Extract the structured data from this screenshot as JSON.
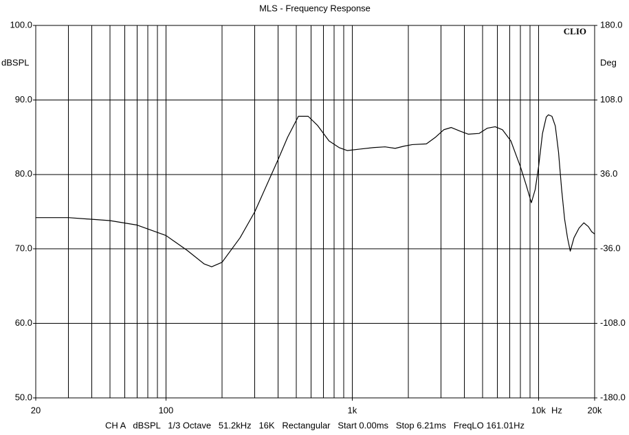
{
  "chart_data": {
    "type": "line",
    "title": "MLS - Frequency Response",
    "brand": "CLIO",
    "ylabel": "dBSPL",
    "y2label": "Deg",
    "xlabel": "Hz",
    "footer": "CH A   dBSPL   1/3 Octave   51.2kHz   16K   Rectangular   Start 0.00ms   Stop 6.21ms   FreqLO 161.01Hz",
    "xscale": "log",
    "grid": true,
    "xlim": [
      20,
      20000
    ],
    "xticks": [
      20,
      100,
      {
        "value": 1000,
        "label": "1k"
      },
      {
        "value": 10000,
        "label": "10k"
      },
      {
        "value": 20000,
        "label": "20k"
      }
    ],
    "xgrid": [
      30,
      40,
      50,
      60,
      70,
      80,
      90,
      200,
      300,
      400,
      500,
      600,
      700,
      800,
      900,
      2000,
      3000,
      4000,
      5000,
      6000,
      7000,
      8000,
      9000
    ],
    "ylim": [
      50,
      100
    ],
    "yticks": [
      {
        "value": 50,
        "label": "50.0"
      },
      {
        "value": 60,
        "label": "60.0"
      },
      {
        "value": 70,
        "label": "70.0"
      },
      {
        "value": 80,
        "label": "80.0"
      },
      {
        "value": 90,
        "label": "90.0"
      },
      {
        "value": 100,
        "label": "100.0"
      }
    ],
    "y2lim": [
      -180,
      180
    ],
    "y2ticks": [
      {
        "value": -180,
        "label": "-180.0"
      },
      {
        "value": -108,
        "label": "-108.0"
      },
      {
        "value": -36,
        "label": "-36.0"
      },
      {
        "value": 36,
        "label": "36.0"
      },
      {
        "value": 108,
        "label": "108.0"
      },
      {
        "value": 180,
        "label": "180.0"
      }
    ],
    "x": [
      20,
      30,
      50,
      70,
      100,
      130,
      160,
      176,
      200,
      250,
      300,
      400,
      450,
      514,
      580,
      650,
      750,
      850,
      940,
      1100,
      1300,
      1500,
      1700,
      1900,
      2100,
      2500,
      2800,
      3100,
      3400,
      3800,
      4200,
      4800,
      5300,
      5850,
      6400,
      7100,
      7600,
      8000,
      8600,
      9150,
      9600,
      10000,
      10500,
      11000,
      11300,
      11800,
      12300,
      12800,
      13300,
      13800,
      14300,
      14800,
      15500,
      16500,
      17500,
      18500,
      19300,
      20000
    ],
    "series": [
      {
        "name": "CH A",
        "color": "#000000",
        "values": [
          74.2,
          74.2,
          73.8,
          73.2,
          71.8,
          69.8,
          68.0,
          67.6,
          68.2,
          71.5,
          75.0,
          82.0,
          85.0,
          87.8,
          87.8,
          86.6,
          84.5,
          83.6,
          83.2,
          83.4,
          83.6,
          83.7,
          83.5,
          83.8,
          84.0,
          84.1,
          85.0,
          86.0,
          86.3,
          85.8,
          85.4,
          85.5,
          86.2,
          86.4,
          86.0,
          84.5,
          82.5,
          81.0,
          78.5,
          76.2,
          78.0,
          81.0,
          85.5,
          87.7,
          88.0,
          87.8,
          86.5,
          83.0,
          78.0,
          74.0,
          71.5,
          69.7,
          71.5,
          72.8,
          73.5,
          73.0,
          72.3,
          72.0
        ]
      }
    ]
  }
}
